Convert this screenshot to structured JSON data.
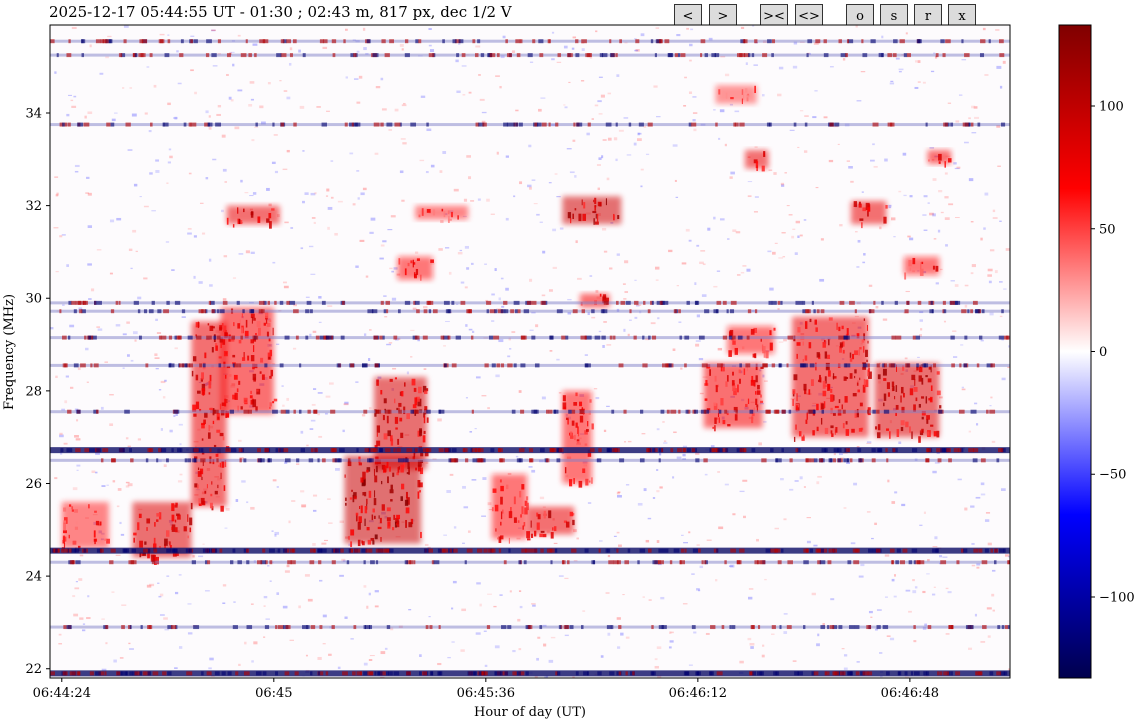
{
  "title": "2025-12-17 05:44:55 UT - 01:30 ; 02:43 m, 817 px, dec 1/2 V",
  "toolbar": {
    "prev": "<",
    "next": ">",
    "zoom_in": "><",
    "zoom_out": "<>",
    "o": "o",
    "s": "s",
    "r": "r",
    "x": "x"
  },
  "chart_data": {
    "type": "heatmap",
    "title": "2025-12-17 05:44:55 UT - 01:30 ; 02:43 m, 817 px, dec 1/2 V",
    "xlabel": "Hour of day (UT)",
    "ylabel": "Frequency (MHz)",
    "x_ticks": [
      "06:44:24",
      "06:45",
      "06:45:36",
      "06:46:12",
      "06:46:48"
    ],
    "x_tick_seconds": [
      0,
      36,
      72,
      108,
      144
    ],
    "x_range_seconds": [
      -2,
      161
    ],
    "y_ticks": [
      22,
      24,
      26,
      28,
      30,
      32,
      34
    ],
    "ylim": [
      21.8,
      35.9
    ],
    "colorbar": {
      "ticks": [
        100,
        50,
        0,
        -50,
        -100
      ],
      "range": [
        -133,
        133
      ],
      "colormap": "seismic",
      "colors": [
        "#00004d",
        "#0000ff",
        "#ffffff",
        "#ff0000",
        "#800000"
      ]
    },
    "horizontal_interference_bands_mhz": [
      21.9,
      22.9,
      24.3,
      24.55,
      26.5,
      26.72,
      27.55,
      28.55,
      29.15,
      29.72,
      29.9,
      33.75,
      35.25,
      35.55
    ],
    "burst_regions": [
      {
        "t": [
          0,
          8
        ],
        "f": [
          24.6,
          25.6
        ],
        "strength": 80
      },
      {
        "t": [
          12,
          22
        ],
        "f": [
          24.4,
          25.6
        ],
        "strength": 120
      },
      {
        "t": [
          22,
          28
        ],
        "f": [
          25.5,
          29.5
        ],
        "strength": 110
      },
      {
        "t": [
          27,
          36
        ],
        "f": [
          27.5,
          29.8
        ],
        "strength": 100
      },
      {
        "t": [
          28,
          37
        ],
        "f": [
          31.6,
          32.0
        ],
        "strength": 110
      },
      {
        "t": [
          48,
          61
        ],
        "f": [
          24.7,
          26.6
        ],
        "strength": 135
      },
      {
        "t": [
          53,
          62
        ],
        "f": [
          26.3,
          28.3
        ],
        "strength": 125
      },
      {
        "t": [
          57,
          63
        ],
        "f": [
          30.4,
          30.9
        ],
        "strength": 90
      },
      {
        "t": [
          60,
          69
        ],
        "f": [
          31.7,
          32.0
        ],
        "strength": 80
      },
      {
        "t": [
          73,
          79
        ],
        "f": [
          24.8,
          26.2
        ],
        "strength": 90
      },
      {
        "t": [
          79,
          87
        ],
        "f": [
          24.9,
          25.5
        ],
        "strength": 110
      },
      {
        "t": [
          85,
          90
        ],
        "f": [
          26.0,
          28.0
        ],
        "strength": 90
      },
      {
        "t": [
          85,
          95
        ],
        "f": [
          31.6,
          32.2
        ],
        "strength": 130
      },
      {
        "t": [
          88,
          93
        ],
        "f": [
          29.8,
          30.1
        ],
        "strength": 100
      },
      {
        "t": [
          109,
          119
        ],
        "f": [
          27.2,
          28.6
        ],
        "strength": 100
      },
      {
        "t": [
          113,
          121
        ],
        "f": [
          28.8,
          29.4
        ],
        "strength": 90
      },
      {
        "t": [
          111,
          118
        ],
        "f": [
          34.2,
          34.6
        ],
        "strength": 70
      },
      {
        "t": [
          116,
          120
        ],
        "f": [
          32.8,
          33.2
        ],
        "strength": 110
      },
      {
        "t": [
          124,
          137
        ],
        "f": [
          27.0,
          29.6
        ],
        "strength": 110
      },
      {
        "t": [
          134,
          140
        ],
        "f": [
          31.6,
          32.1
        ],
        "strength": 110
      },
      {
        "t": [
          138,
          149
        ],
        "f": [
          27.0,
          28.6
        ],
        "strength": 120
      },
      {
        "t": [
          143,
          149
        ],
        "f": [
          30.5,
          30.9
        ],
        "strength": 90
      },
      {
        "t": [
          147,
          151
        ],
        "f": [
          32.9,
          33.2
        ],
        "strength": 100
      }
    ]
  }
}
